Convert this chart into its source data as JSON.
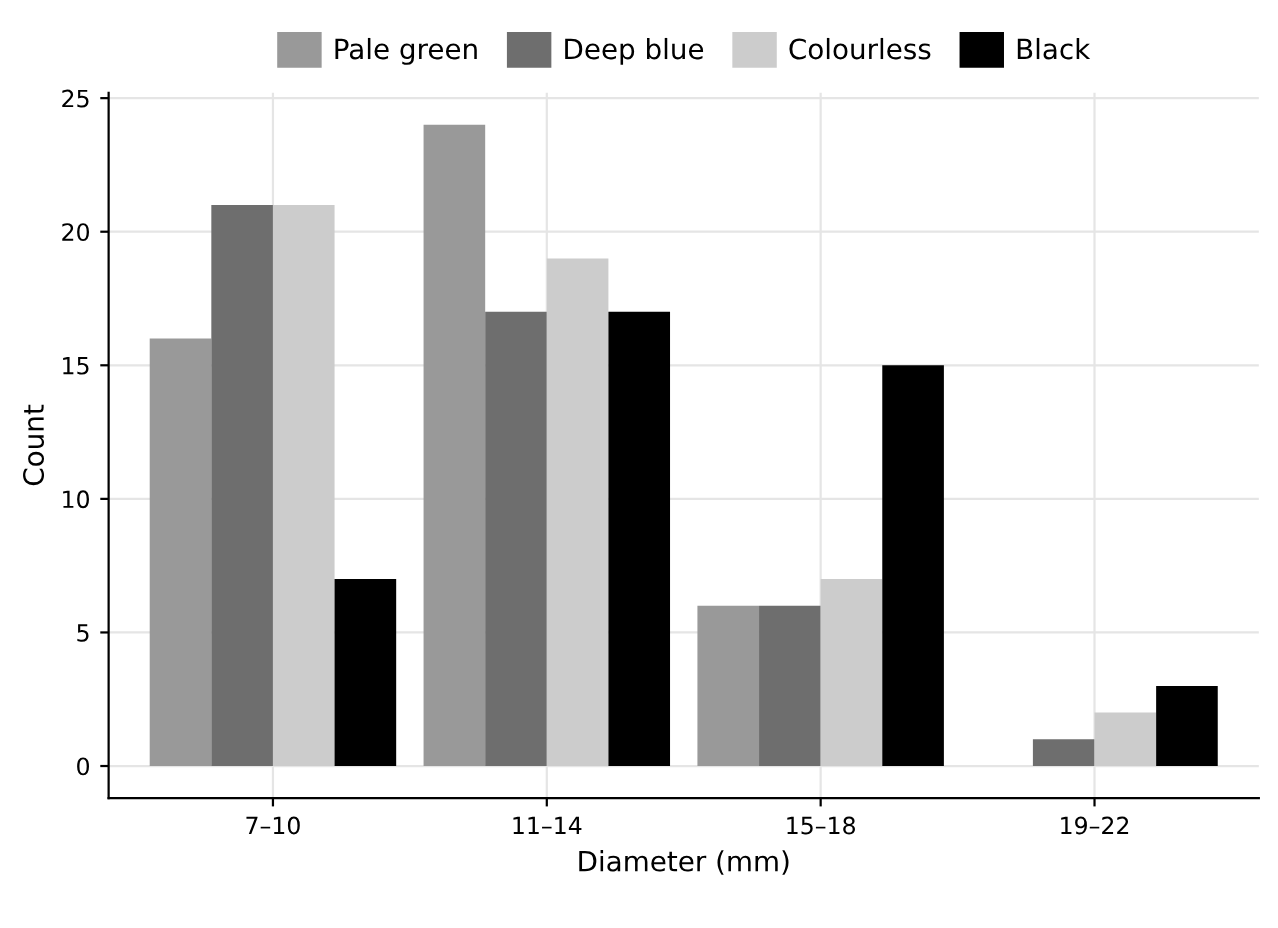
{
  "chart_data": {
    "type": "bar",
    "xlabel": "Diameter (mm)",
    "ylabel": "Count",
    "categories": [
      "7–10",
      "11–14",
      "15–18",
      "19–22"
    ],
    "series": [
      {
        "name": "Pale green",
        "color": "#999999",
        "values": [
          16,
          24,
          6,
          0
        ]
      },
      {
        "name": "Deep blue",
        "color": "#6e6e6e",
        "values": [
          21,
          17,
          6,
          1
        ]
      },
      {
        "name": "Colourless",
        "color": "#cccccc",
        "values": [
          21,
          19,
          7,
          2
        ]
      },
      {
        "name": "Black",
        "color": "#000000",
        "values": [
          7,
          17,
          15,
          3
        ]
      }
    ],
    "ylim": [
      -1.2,
      25.2
    ],
    "yticks": [
      0,
      5,
      10,
      15,
      20,
      25
    ],
    "grid": true,
    "legend": "top"
  }
}
